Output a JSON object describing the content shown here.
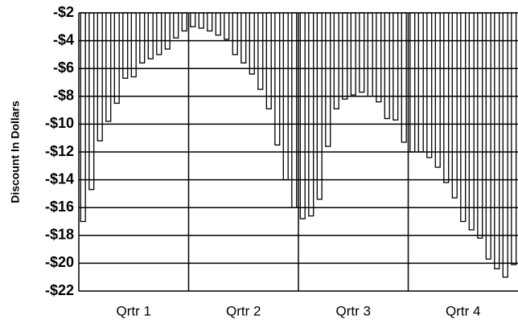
{
  "chart_data": {
    "type": "bar",
    "y_label": "Discount In Dollars",
    "groups": [
      {
        "name": "Qrtr 1",
        "values": [
          -17,
          -14.7,
          -11.2,
          -9.8,
          -8.5,
          -6.7,
          -6.6,
          -5.6,
          -5.3,
          -5.0,
          -4.6,
          -3.8,
          -3.3
        ]
      },
      {
        "name": "Qrtr 2",
        "values": [
          -3.0,
          -3.1,
          -3.3,
          -3.6,
          -3.9,
          -5.0,
          -5.6,
          -6.4,
          -7.5,
          -8.9,
          -11.5,
          -14.0,
          -16.0
        ]
      },
      {
        "name": "Qrtr 3",
        "values": [
          -16.8,
          -16.6,
          -15.4,
          -11.6,
          -8.9,
          -8.2,
          -7.9,
          -7.7,
          -8.0,
          -8.4,
          -9.6,
          -9.7,
          -11.3
        ]
      },
      {
        "name": "Qrtr 4",
        "values": [
          -12,
          -12,
          -12.4,
          -13.1,
          -14.2,
          -15.3,
          -17.0,
          -17.6,
          -18.2,
          -19.7,
          -20.4,
          -21.0,
          -20.1
        ]
      }
    ],
    "color": "#ffffff",
    "stroke": "#000000",
    "ylim": [
      -22,
      -2
    ],
    "yticks": [
      {
        "value": -22,
        "label": "-$22"
      },
      {
        "value": -20,
        "label": "-$20"
      },
      {
        "value": -18,
        "label": "-$18"
      },
      {
        "value": -16,
        "label": "-$16"
      },
      {
        "value": -14,
        "label": "-$14"
      },
      {
        "value": -12,
        "label": "-$12"
      },
      {
        "value": -10,
        "label": "-$10"
      },
      {
        "value": -8,
        "label": "-$8"
      },
      {
        "value": -6,
        "label": "-$6"
      },
      {
        "value": -4,
        "label": "-$4"
      },
      {
        "value": -2,
        "label": "-$2"
      }
    ],
    "grid": true
  }
}
